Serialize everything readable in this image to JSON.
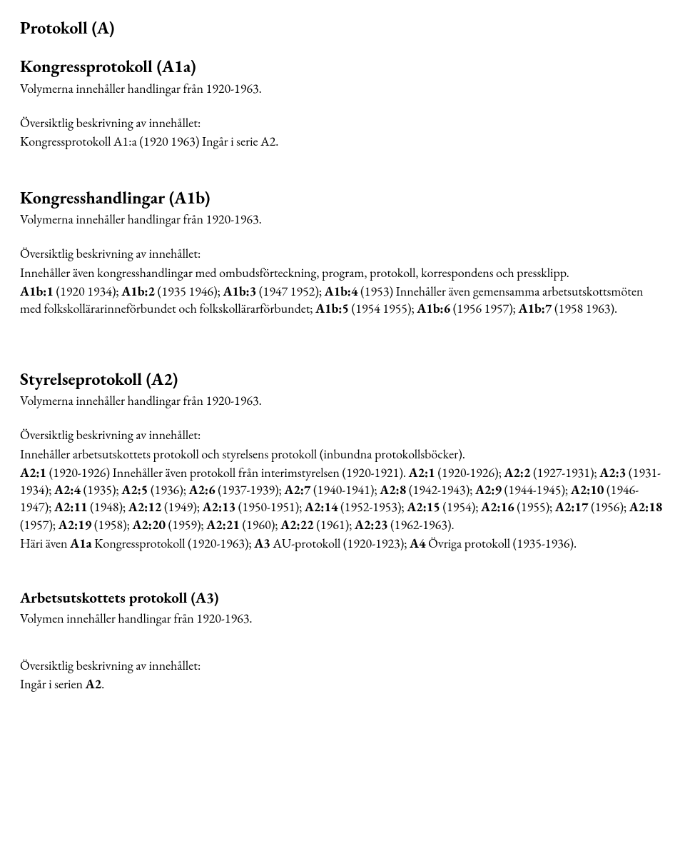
{
  "main_title": "Protokoll (A)",
  "sections": {
    "a1a": {
      "heading": "Kongressprotokoll (A1a)",
      "volume_line": "Volymerna innehåller handlingar från 1920-1963.",
      "overview_label": "Översiktlig beskrivning av innehållet:",
      "body_plain": "Kongressprotokoll A1:a (1920 1963) Ingår i serie A2."
    },
    "a1b": {
      "heading": "Kongresshandlingar (A1b)",
      "volume_line": "Volymerna innehåller handlingar från 1920-1963.",
      "overview_label": "Översiktlig beskrivning av innehållet:",
      "intro": "Innehåller även kongresshandlingar med ombudsförteckning, program, protokoll, korrespondens och pressklipp.",
      "runs": [
        {
          "bold": true,
          "text": "A1b:1"
        },
        {
          "bold": false,
          "text": " (1920 1934); "
        },
        {
          "bold": true,
          "text": "A1b:2"
        },
        {
          "bold": false,
          "text": " (1935 1946); "
        },
        {
          "bold": true,
          "text": "A1b:3"
        },
        {
          "bold": false,
          "text": " (1947 1952); "
        },
        {
          "bold": true,
          "text": "A1b:4"
        },
        {
          "bold": false,
          "text": " (1953) Innehåller även gemensamma arbetsutskottsmöten med folkskollärarinneförbundet och folkskollärarförbundet; "
        },
        {
          "bold": true,
          "text": "A1b:5"
        },
        {
          "bold": false,
          "text": " (1954 1955); "
        },
        {
          "bold": true,
          "text": "A1b:6"
        },
        {
          "bold": false,
          "text": " (1956 1957); "
        },
        {
          "bold": true,
          "text": "A1b:7"
        },
        {
          "bold": false,
          "text": " (1958 1963)."
        }
      ]
    },
    "a2": {
      "heading": "Styrelseprotokoll (A2)",
      "volume_line": "Volymerna innehåller handlingar från 1920-1963.",
      "overview_label": "Översiktlig beskrivning av innehållet:",
      "intro": "Innehåller arbetsutskottets protokoll och styrelsens protokoll (inbundna protokollsböcker).",
      "runs": [
        {
          "bold": true,
          "text": "A2:1"
        },
        {
          "bold": false,
          "text": " (1920-1926) Innehåller även protokoll från interimstyrelsen (1920-1921). "
        },
        {
          "bold": true,
          "text": "A2:1"
        },
        {
          "bold": false,
          "text": " (1920-1926); "
        },
        {
          "bold": true,
          "text": "A2:2"
        },
        {
          "bold": false,
          "text": " (1927-1931); "
        },
        {
          "bold": true,
          "text": "A2:3"
        },
        {
          "bold": false,
          "text": " (1931-1934); "
        },
        {
          "bold": true,
          "text": "A2:4"
        },
        {
          "bold": false,
          "text": " (1935); "
        },
        {
          "bold": true,
          "text": "A2:5"
        },
        {
          "bold": false,
          "text": " (1936); "
        },
        {
          "bold": true,
          "text": "A2:6"
        },
        {
          "bold": false,
          "text": " (1937-1939); "
        },
        {
          "bold": true,
          "text": "A2:7"
        },
        {
          "bold": false,
          "text": " (1940-1941); "
        },
        {
          "bold": true,
          "text": "A2:8"
        },
        {
          "bold": false,
          "text": " (1942-1943); "
        },
        {
          "bold": true,
          "text": "A2:9"
        },
        {
          "bold": false,
          "text": " (1944-1945); "
        },
        {
          "bold": true,
          "text": "A2:10"
        },
        {
          "bold": false,
          "text": " (1946-1947); "
        },
        {
          "bold": true,
          "text": "A2:11"
        },
        {
          "bold": false,
          "text": " (1948); "
        },
        {
          "bold": true,
          "text": "A2:12"
        },
        {
          "bold": false,
          "text": " (1949); "
        },
        {
          "bold": true,
          "text": "A2:13"
        },
        {
          "bold": false,
          "text": " (1950-1951); "
        },
        {
          "bold": true,
          "text": "A2:14"
        },
        {
          "bold": false,
          "text": " (1952-1953); "
        },
        {
          "bold": true,
          "text": "A2:15"
        },
        {
          "bold": false,
          "text": " (1954); "
        },
        {
          "bold": true,
          "text": "A2:16"
        },
        {
          "bold": false,
          "text": " (1955); "
        },
        {
          "bold": true,
          "text": "A2:17"
        },
        {
          "bold": false,
          "text": " (1956); "
        },
        {
          "bold": true,
          "text": "A2:18"
        },
        {
          "bold": false,
          "text": " (1957); "
        },
        {
          "bold": true,
          "text": "A2:19"
        },
        {
          "bold": false,
          "text": " (1958); "
        },
        {
          "bold": true,
          "text": "A2:20"
        },
        {
          "bold": false,
          "text": " (1959); "
        },
        {
          "bold": true,
          "text": "A2:21"
        },
        {
          "bold": false,
          "text": " (1960); "
        },
        {
          "bold": true,
          "text": "A2:22"
        },
        {
          "bold": false,
          "text": " (1961); "
        },
        {
          "bold": true,
          "text": "A2:23"
        },
        {
          "bold": false,
          "text": " (1962-1963)."
        }
      ],
      "runs2": [
        {
          "bold": false,
          "text": "Häri även "
        },
        {
          "bold": true,
          "text": "A1a"
        },
        {
          "bold": false,
          "text": " Kongressprotokoll (1920-1963); "
        },
        {
          "bold": true,
          "text": "A3"
        },
        {
          "bold": false,
          "text": " AU-protokoll (1920-1923); "
        },
        {
          "bold": true,
          "text": "A4"
        },
        {
          "bold": false,
          "text": " Övriga protokoll (1935-1936)."
        }
      ]
    },
    "a3": {
      "heading": "Arbetsutskottets protokoll (A3)",
      "volume_line": "Volymen innehåller handlingar från 1920-1963.",
      "overview_label": "Översiktlig beskrivning av innehållet:",
      "body_runs": [
        {
          "bold": false,
          "text": "Ingår i serien "
        },
        {
          "bold": true,
          "text": "A2"
        },
        {
          "bold": false,
          "text": "."
        }
      ]
    }
  }
}
